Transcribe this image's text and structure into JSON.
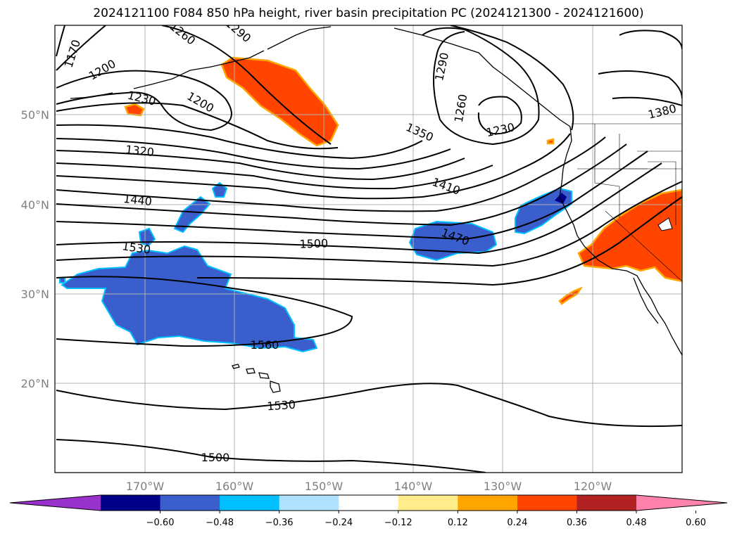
{
  "title": "2024121100 F084 850 hPa height, river basin precipitation PC (2024121300 - 2024121600)",
  "map": {
    "lon_ticks": [
      "170°W",
      "160°W",
      "150°W",
      "140°W",
      "130°W",
      "120°W"
    ],
    "lat_ticks": [
      "50°N",
      "40°N",
      "30°N",
      "20°N"
    ],
    "contour_labels": [
      "1170",
      "1200",
      "1260",
      "1290",
      "1230",
      "1200",
      "1320",
      "1440",
      "1530",
      "1560",
      "1530",
      "1500",
      "1500",
      "1470",
      "1410",
      "1350",
      "1290",
      "1260",
      "1230",
      "1380"
    ],
    "land_color": "#ffffff",
    "grid": true
  },
  "colorbar": {
    "ticks": [
      "−0.60",
      "−0.48",
      "−0.36",
      "−0.24",
      "−0.12",
      "0.12",
      "0.24",
      "0.36",
      "0.48",
      "0.60"
    ],
    "colors": [
      "#9932cc",
      "#00008b",
      "#3a5fcd",
      "#00bfff",
      "#b0e2ff",
      "#ffffff",
      "#ffec8b",
      "#ffa500",
      "#ff4500",
      "#b22222",
      "#ff82ab"
    ]
  }
}
